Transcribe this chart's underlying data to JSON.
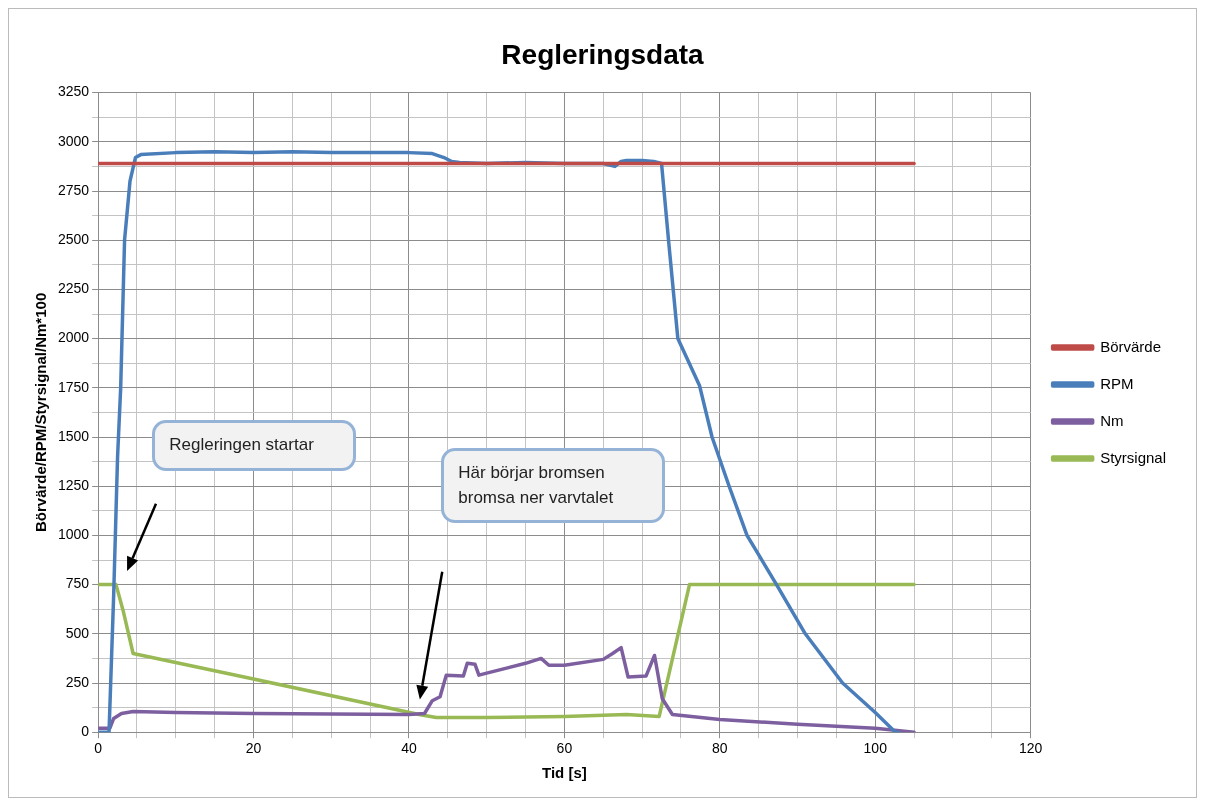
{
  "chart_data": {
    "type": "line",
    "title": "Regleringsdata",
    "xlabel": "Tid [s]",
    "ylabel": "Börvärde/RPM/Styrsignal/Nm*100",
    "series": [
      {
        "name": "Börvärde",
        "color": "#be4b48",
        "x": [
          0,
          105
        ],
        "values": [
          2890,
          2890
        ]
      },
      {
        "name": "RPM",
        "color": "#4a7ebb",
        "x": [
          0,
          1.4,
          2,
          2.5,
          2.9,
          3.4,
          4.1,
          4.8,
          5.5,
          10,
          15,
          20,
          25,
          30,
          35,
          40,
          43,
          44.5,
          45.5,
          46.5,
          50,
          55,
          60,
          65,
          66.5,
          67.3,
          68,
          70,
          71.5,
          72.5,
          73.4,
          74.6,
          77.4,
          79,
          81.2,
          83.5,
          87.3,
          91,
          95.8,
          100,
          102.6,
          103
        ],
        "values": [
          0,
          0,
          700,
          1400,
          1750,
          2500,
          2800,
          2920,
          2935,
          2945,
          2950,
          2945,
          2950,
          2945,
          2945,
          2945,
          2940,
          2920,
          2900,
          2895,
          2890,
          2895,
          2890,
          2890,
          2875,
          2900,
          2905,
          2905,
          2900,
          2890,
          2500,
          2000,
          1760,
          1500,
          1250,
          1000,
          750,
          500,
          250,
          100,
          0,
          0
        ]
      },
      {
        "name": "Nm",
        "color": "#7d5fa0",
        "x": [
          0,
          1.5,
          2,
          3,
          4.5,
          10,
          20,
          30,
          40,
          42,
          43,
          44,
          44.8,
          47,
          47.5,
          48.5,
          49,
          50,
          55,
          57,
          58,
          60,
          65,
          66.2,
          67.3,
          68.2,
          70.5,
          71.6,
          72.6,
          73.9,
          80,
          90,
          100,
          102.5,
          105
        ],
        "values": [
          20,
          20,
          70,
          95,
          105,
          100,
          95,
          92,
          90,
          95,
          160,
          180,
          290,
          285,
          350,
          345,
          290,
          300,
          350,
          375,
          340,
          340,
          370,
          400,
          430,
          280,
          285,
          390,
          170,
          90,
          65,
          40,
          20,
          10,
          0
        ]
      },
      {
        "name": "Styrsignal",
        "color": "#98b954",
        "x": [
          0,
          2.3,
          3.2,
          4.5,
          20,
          41.3,
          43.5,
          50,
          60,
          68,
          72.2,
          76.1,
          105
        ],
        "values": [
          750,
          750,
          620,
          400,
          270,
          90,
          75,
          75,
          80,
          90,
          80,
          750,
          750
        ]
      }
    ],
    "xlim": [
      0,
      120
    ],
    "xticks": [
      0,
      {
        "value": 5,
        "label": null
      },
      {
        "value": 10,
        "label": null
      },
      {
        "value": 15,
        "label": null
      },
      20,
      {
        "value": 25,
        "label": null
      },
      {
        "value": 30,
        "label": null
      },
      {
        "value": 35,
        "label": null
      },
      40,
      {
        "value": 45,
        "label": null
      },
      {
        "value": 50,
        "label": null
      },
      {
        "value": 55,
        "label": null
      },
      60,
      {
        "value": 65,
        "label": null
      },
      {
        "value": 70,
        "label": null
      },
      {
        "value": 75,
        "label": null
      },
      80,
      {
        "value": 85,
        "label": null
      },
      {
        "value": 90,
        "label": null
      },
      {
        "value": 95,
        "label": null
      },
      100,
      {
        "value": 105,
        "label": null
      },
      {
        "value": 110,
        "label": null
      },
      {
        "value": 115,
        "label": null
      },
      120
    ],
    "ylim": [
      0,
      3250
    ],
    "yticks": [
      0,
      {
        "value": 125,
        "label": null
      },
      250,
      {
        "value": 375,
        "label": null
      },
      500,
      {
        "value": 625,
        "label": null
      },
      750,
      {
        "value": 875,
        "label": null
      },
      1000,
      {
        "value": 1125,
        "label": null
      },
      1250,
      {
        "value": 1375,
        "label": null
      },
      1500,
      {
        "value": 1625,
        "label": null
      },
      1750,
      {
        "value": 1875,
        "label": null
      },
      2000,
      {
        "value": 2125,
        "label": null
      },
      2250,
      {
        "value": 2375,
        "label": null
      },
      2500,
      {
        "value": 2625,
        "label": null
      },
      2750,
      {
        "value": 2875,
        "label": null
      },
      3000,
      {
        "value": 3125,
        "label": null
      },
      3250
    ],
    "grid": true,
    "legend": "right",
    "annotations": [
      "Regleringen startar",
      "Här börjar bromsen bromsa ner varvtalet"
    ]
  }
}
